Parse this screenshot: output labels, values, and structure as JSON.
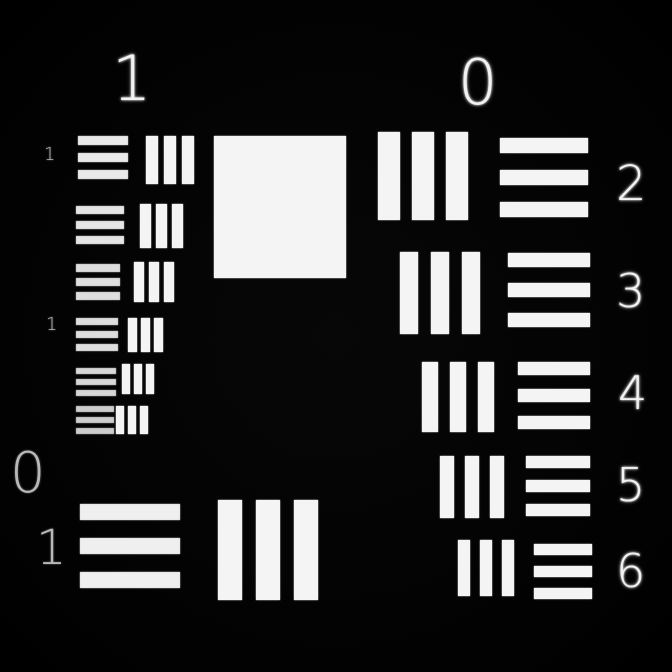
{
  "target": {
    "group_labels": {
      "top_left": "1",
      "top_right": "0",
      "bottom_left_top": "0",
      "bottom_left_bottom": "1"
    },
    "element_labels": [
      "2",
      "3",
      "4",
      "5",
      "6"
    ],
    "small_left_labels": [
      "1",
      "1"
    ],
    "colors": {
      "background": "#000000",
      "bars": "#f4f4f4"
    }
  }
}
